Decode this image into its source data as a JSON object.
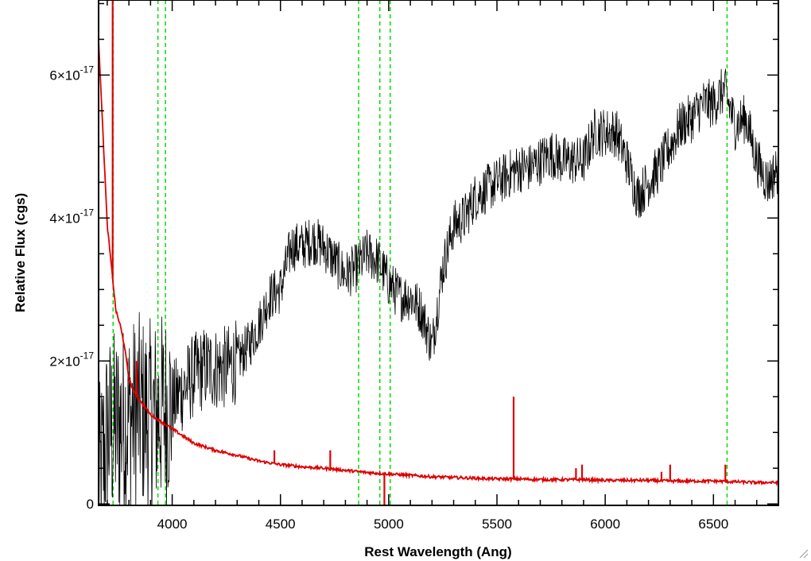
{
  "chart_data": {
    "type": "line",
    "xlabel": "Rest Wavelength (Ang)",
    "ylabel": "Relative Flux (cgs)",
    "xlim": [
      3660,
      6800
    ],
    "ylim": [
      -2e-19,
      7.05e-17
    ],
    "xticks": [
      {
        "value": 4000,
        "label": "4000"
      },
      {
        "value": 4500,
        "label": "4500"
      },
      {
        "value": 5000,
        "label": "5000"
      },
      {
        "value": 5500,
        "label": "5500"
      },
      {
        "value": 6000,
        "label": "6000"
      },
      {
        "value": 6500,
        "label": "6500"
      }
    ],
    "yticks": [
      {
        "value": 0,
        "mantissa": "0",
        "exponent": ""
      },
      {
        "value": 2e-17,
        "mantissa": "2×10",
        "exponent": "-17"
      },
      {
        "value": 4e-17,
        "mantissa": "4×10",
        "exponent": "-17"
      },
      {
        "value": 6e-17,
        "mantissa": "6×10",
        "exponent": "-17"
      }
    ],
    "grid": false,
    "reference_lines": {
      "color": "#00dd00",
      "style": "dashed",
      "x": [
        3727,
        3934,
        3969,
        4861,
        4959,
        5007,
        6563
      ]
    },
    "series": [
      {
        "color": "#000000",
        "points": [
          [
            3660,
            2e-18
          ],
          [
            3700,
            1e-17
          ],
          [
            3750,
            1.1e-17
          ],
          [
            3800,
            1.2e-17
          ],
          [
            3850,
            1.3e-17
          ],
          [
            3900,
            1.2e-17
          ],
          [
            3950,
            1.3e-17
          ],
          [
            4000,
            1.4e-17
          ],
          [
            4050,
            1.6e-17
          ],
          [
            4100,
            1.8e-17
          ],
          [
            4150,
            1.9e-17
          ],
          [
            4200,
            1.9e-17
          ],
          [
            4250,
            1.9e-17
          ],
          [
            4300,
            2e-17
          ],
          [
            4350,
            2.2e-17
          ],
          [
            4400,
            2.5e-17
          ],
          [
            4450,
            2.9e-17
          ],
          [
            4500,
            3e-17
          ],
          [
            4550,
            3.6e-17
          ],
          [
            4600,
            3.6e-17
          ],
          [
            4650,
            3.7e-17
          ],
          [
            4700,
            3.6e-17
          ],
          [
            4750,
            3.4e-17
          ],
          [
            4800,
            3.2e-17
          ],
          [
            4850,
            3.3e-17
          ],
          [
            4900,
            3.5e-17
          ],
          [
            4950,
            3.4e-17
          ],
          [
            5000,
            3.1e-17
          ],
          [
            5050,
            2.9e-17
          ],
          [
            5100,
            2.9e-17
          ],
          [
            5150,
            2.7e-17
          ],
          [
            5200,
            2.2e-17
          ],
          [
            5250,
            3.3e-17
          ],
          [
            5300,
            3.9e-17
          ],
          [
            5350,
            4e-17
          ],
          [
            5400,
            4.3e-17
          ],
          [
            5450,
            4.4e-17
          ],
          [
            5500,
            4.5e-17
          ],
          [
            5550,
            4.6e-17
          ],
          [
            5600,
            4.7e-17
          ],
          [
            5650,
            4.7e-17
          ],
          [
            5700,
            4.8e-17
          ],
          [
            5750,
            4.9e-17
          ],
          [
            5800,
            4.8e-17
          ],
          [
            5850,
            4.8e-17
          ],
          [
            5900,
            4.8e-17
          ],
          [
            5950,
            5.2e-17
          ],
          [
            6000,
            5.2e-17
          ],
          [
            6050,
            5.2e-17
          ],
          [
            6100,
            4.8e-17
          ],
          [
            6150,
            4.3e-17
          ],
          [
            6200,
            4.5e-17
          ],
          [
            6250,
            4.7e-17
          ],
          [
            6300,
            5e-17
          ],
          [
            6350,
            5.3e-17
          ],
          [
            6400,
            5.4e-17
          ],
          [
            6450,
            5.6e-17
          ],
          [
            6500,
            5.6e-17
          ],
          [
            6550,
            5.8e-17
          ],
          [
            6600,
            5.3e-17
          ],
          [
            6650,
            5.4e-17
          ],
          [
            6700,
            4.8e-17
          ],
          [
            6750,
            4.5e-17
          ],
          [
            6800,
            4.7e-17
          ]
        ]
      },
      {
        "color": "#dd0000",
        "points": [
          [
            3660,
            6.5e-17
          ],
          [
            3680,
            5.2e-17
          ],
          [
            3700,
            3.9e-17
          ],
          [
            3720,
            3.3e-17
          ],
          [
            3740,
            2.7e-17
          ],
          [
            3760,
            2.5e-17
          ],
          [
            3780,
            2.2e-17
          ],
          [
            3800,
            1.75e-17
          ],
          [
            3825,
            1.55e-17
          ],
          [
            3850,
            1.45e-17
          ],
          [
            3875,
            1.35e-17
          ],
          [
            3900,
            1.25e-17
          ],
          [
            3950,
            1.15e-17
          ],
          [
            4000,
            1.05e-17
          ],
          [
            4050,
            9.5e-18
          ],
          [
            4100,
            8.5e-18
          ],
          [
            4150,
            8e-18
          ],
          [
            4200,
            7.5e-18
          ],
          [
            4300,
            6.8e-18
          ],
          [
            4400,
            6e-18
          ],
          [
            4500,
            5.5e-18
          ],
          [
            4600,
            5.2e-18
          ],
          [
            4700,
            5e-18
          ],
          [
            4800,
            4.7e-18
          ],
          [
            4900,
            4.4e-18
          ],
          [
            5000,
            4.2e-18
          ],
          [
            5100,
            4e-18
          ],
          [
            5200,
            3.8e-18
          ],
          [
            5300,
            3.7e-18
          ],
          [
            5400,
            3.6e-18
          ],
          [
            5500,
            3.5e-18
          ],
          [
            5600,
            3.5e-18
          ],
          [
            5700,
            3.4e-18
          ],
          [
            5800,
            3.4e-18
          ],
          [
            5900,
            3.4e-18
          ],
          [
            6000,
            3.3e-18
          ],
          [
            6100,
            3.3e-18
          ],
          [
            6200,
            3.3e-18
          ],
          [
            6300,
            3.2e-18
          ],
          [
            6400,
            3.2e-18
          ],
          [
            6500,
            3.2e-18
          ],
          [
            6600,
            3.1e-18
          ],
          [
            6700,
            3e-18
          ],
          [
            6800,
            3e-18
          ]
        ],
        "spikes": [
          [
            3725,
            7.05e-17
          ],
          [
            3836,
            2e-17
          ],
          [
            4472,
            7.5e-18
          ],
          [
            4730,
            7.5e-18
          ],
          [
            4980,
            -2e-19
          ],
          [
            5577,
            1.5e-17
          ],
          [
            5865,
            5e-18
          ],
          [
            5893,
            5.5e-18
          ],
          [
            6260,
            4.5e-18
          ],
          [
            6300,
            5.5e-18
          ],
          [
            6555,
            5.5e-18
          ]
        ]
      }
    ]
  }
}
